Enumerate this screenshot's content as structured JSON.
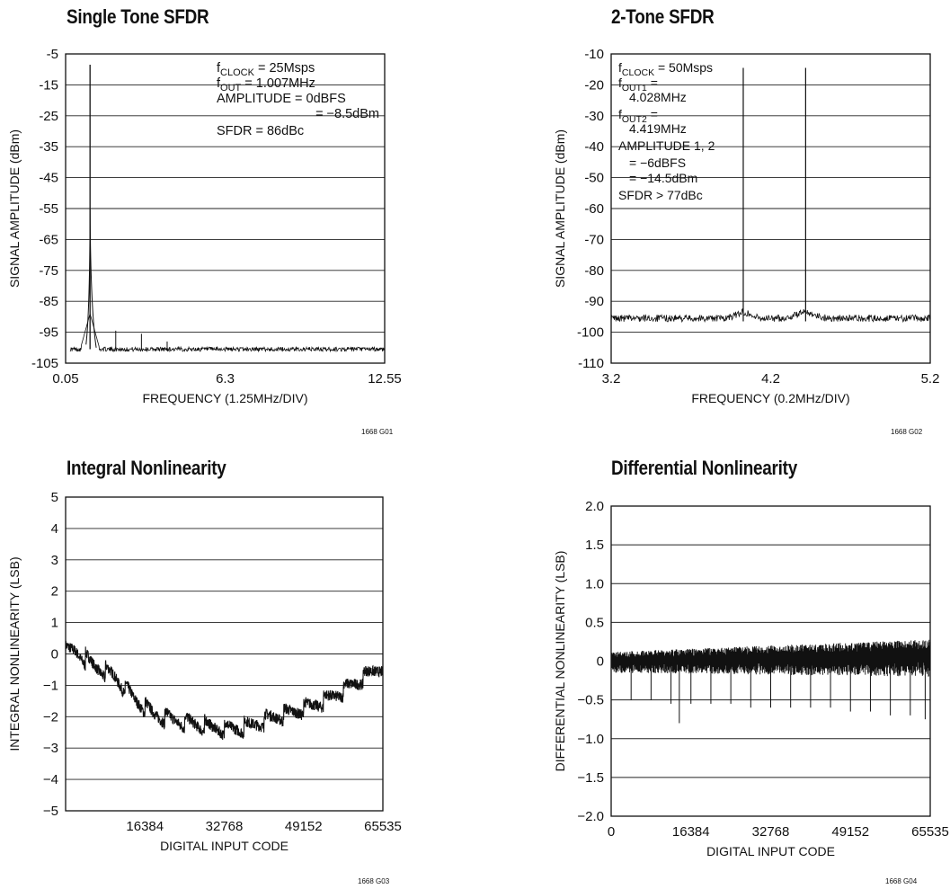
{
  "chart_data": [
    {
      "type": "line",
      "title": "Single Tone SFDR",
      "xlabel": "FREQUENCY (1.25MHz/DIV)",
      "ylabel": "SIGNAL AMPLITUDE (dBm)",
      "xlim": [
        0.05,
        12.55
      ],
      "ylim": [
        -105,
        -5
      ],
      "x_ticks": [
        "0.05",
        "6.3",
        "12.55"
      ],
      "y_ticks": [
        "-5",
        "-15",
        "-25",
        "-35",
        "-45",
        "-55",
        "-65",
        "-75",
        "-85",
        "-95",
        "-105"
      ],
      "grid": "horizontal",
      "annotation_lines": [
        "fCLOCK = 25Msps",
        "fOUT = 1.007MHz",
        "AMPLITUDE = 0dBFS",
        "= −8.5dBm",
        "SFDR = 86dBc"
      ],
      "figure_code": "1668 G01",
      "series": [
        {
          "noise_floor": -100.5,
          "peaks": [
            {
              "x": 1.007,
              "y": -8.5
            },
            {
              "x": 2.014,
              "y": -94.5
            },
            {
              "x": 3.021,
              "y": -95.5
            },
            {
              "x": 4.028,
              "y": -98
            }
          ]
        }
      ]
    },
    {
      "type": "line",
      "title": "2-Tone SFDR",
      "xlabel": "FREQUENCY (0.2MHz/DIV)",
      "ylabel": "SIGNAL AMPLITUDE (dBm)",
      "xlim": [
        3.2,
        5.2
      ],
      "ylim": [
        -110,
        -10
      ],
      "x_ticks": [
        "3.2",
        "4.2",
        "5.2"
      ],
      "y_ticks": [
        "-10",
        "-20",
        "-30",
        "-40",
        "-50",
        "-60",
        "-70",
        "-80",
        "-90",
        "-100",
        "-110"
      ],
      "grid": "horizontal",
      "annotation_lines": [
        "fCLOCK = 50Msps",
        "fOUT1 =",
        "4.028MHz",
        "fOUT2 =",
        "4.419MHz",
        "AMPLITUDE 1, 2",
        "= −6dBFS",
        "= −14.5dBm",
        "SFDR > 77dBc"
      ],
      "figure_code": "1668 G02",
      "series": [
        {
          "noise_floor": -95.5,
          "peaks": [
            {
              "x": 4.028,
              "y": -14.5
            },
            {
              "x": 4.419,
              "y": -14.5
            }
          ]
        }
      ]
    },
    {
      "type": "line",
      "title": "Integral Nonlinearity",
      "xlabel": "DIGITAL INPUT CODE",
      "ylabel": "INTEGRAL NONLINEARITY (LSB)",
      "xlim": [
        0,
        65535
      ],
      "ylim": [
        -5,
        5
      ],
      "x_ticks": [
        "16384",
        "32768",
        "49152",
        "65535"
      ],
      "y_ticks": [
        "5",
        "4",
        "3",
        "2",
        "1",
        "0",
        "−1",
        "−2",
        "−3",
        "−4",
        "−5"
      ],
      "grid": "horizontal",
      "figure_code": "1668 G03",
      "series": [
        {
          "envelope": [
            [
              0,
              0.05
            ],
            [
              2000,
              0.1
            ],
            [
              6000,
              -0.4
            ],
            [
              10000,
              -0.7
            ],
            [
              14000,
              -1.4
            ],
            [
              18000,
              -1.9
            ],
            [
              22000,
              -2.1
            ],
            [
              26000,
              -2.2
            ],
            [
              30000,
              -2.35
            ],
            [
              34000,
              -2.4
            ],
            [
              38000,
              -2.3
            ],
            [
              42000,
              -2.05
            ],
            [
              46000,
              -1.9
            ],
            [
              50000,
              -1.7
            ],
            [
              54000,
              -1.45
            ],
            [
              58000,
              -1.1
            ],
            [
              62000,
              -0.7
            ],
            [
              65535,
              -0.35
            ]
          ]
        }
      ]
    },
    {
      "type": "line",
      "title": "Differential Nonlinearity",
      "xlabel": "DIGITAL INPUT CODE",
      "ylabel": "DIFFERENTIAL NONLINEARITY (LSB)",
      "xlim": [
        0,
        65535
      ],
      "ylim": [
        -2,
        2
      ],
      "x_ticks": [
        "0",
        "16384",
        "32768",
        "49152",
        "65535"
      ],
      "y_ticks": [
        "2.0",
        "1.5",
        "1.0",
        "0.5",
        "0",
        "−0.5",
        "−1.0",
        "−1.5",
        "−2.0"
      ],
      "grid": "horizontal",
      "figure_code": "1668 G04",
      "series": [
        {
          "band_start": [
            -0.15,
            0.12
          ],
          "band_end": [
            -0.2,
            0.28
          ],
          "negative_spikes": [
            {
              "x": 4096,
              "y": -0.5
            },
            {
              "x": 8192,
              "y": -0.5
            },
            {
              "x": 12288,
              "y": -0.55
            },
            {
              "x": 14000,
              "y": -0.8
            },
            {
              "x": 16384,
              "y": -0.55
            },
            {
              "x": 20480,
              "y": -0.55
            },
            {
              "x": 24576,
              "y": -0.55
            },
            {
              "x": 28672,
              "y": -0.6
            },
            {
              "x": 32768,
              "y": -0.6
            },
            {
              "x": 36864,
              "y": -0.6
            },
            {
              "x": 40960,
              "y": -0.6
            },
            {
              "x": 45056,
              "y": -0.6
            },
            {
              "x": 49152,
              "y": -0.65
            },
            {
              "x": 53248,
              "y": -0.65
            },
            {
              "x": 57344,
              "y": -0.7
            },
            {
              "x": 61440,
              "y": -0.7
            },
            {
              "x": 64500,
              "y": -0.75
            }
          ]
        }
      ]
    }
  ]
}
